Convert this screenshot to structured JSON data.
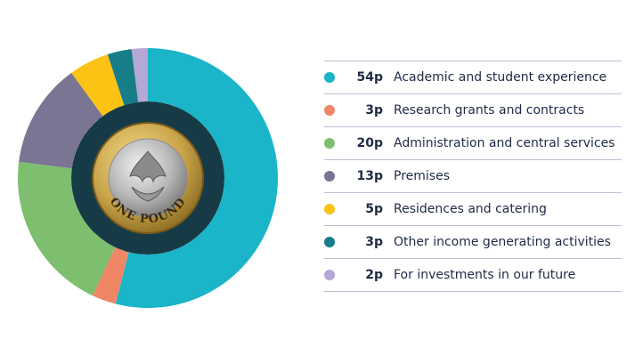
{
  "chart_data": {
    "type": "pie",
    "unit": "p",
    "slices": [
      {
        "value_label": "54p",
        "value": 54,
        "label": "Academic and student experience",
        "color": "#1ab5c8"
      },
      {
        "value_label": "3p",
        "value": 3,
        "label": "Research grants and contracts",
        "color": "#ef8666"
      },
      {
        "value_label": "20p",
        "value": 20,
        "label": "Administration and central services",
        "color": "#7dbf6f"
      },
      {
        "value_label": "13p",
        "value": 13,
        "label": "Premises",
        "color": "#7a7593"
      },
      {
        "value_label": "5p",
        "value": 5,
        "label": "Residences and catering",
        "color": "#fcc315"
      },
      {
        "value_label": "3p",
        "value": 3,
        "label": "Other income generating activities",
        "color": "#167d89"
      },
      {
        "value_label": "2p",
        "value": 2,
        "label": "For investments in our future",
        "color": "#b5a7d6"
      }
    ]
  },
  "coin": {
    "inscription": "ONE POUND",
    "ring_color": "#163b46"
  }
}
